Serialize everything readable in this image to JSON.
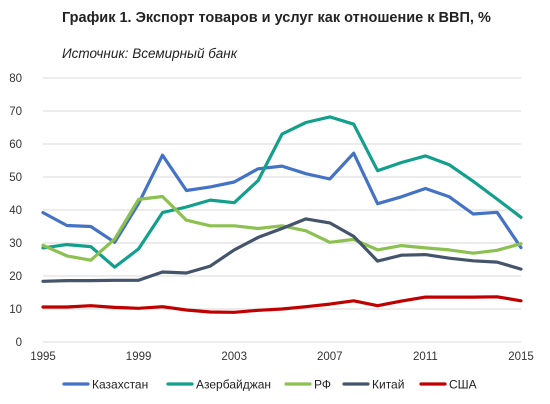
{
  "chart_data": {
    "type": "line",
    "title": "График 1. Экспорт товаров и услуг как отношение к ВВП, %",
    "subtitle": "Источник: Всемирный банк",
    "xlabel": "",
    "ylabel": "",
    "ylim": [
      0,
      80
    ],
    "yticks": [
      0,
      10,
      20,
      30,
      40,
      50,
      60,
      70,
      80
    ],
    "xticks": [
      1995,
      1999,
      2003,
      2007,
      2011,
      2015
    ],
    "grid": true,
    "legend_position": "bottom",
    "x": [
      1995,
      1996,
      1997,
      1998,
      1999,
      2000,
      2001,
      2002,
      2003,
      2004,
      2005,
      2006,
      2007,
      2008,
      2009,
      2010,
      2011,
      2012,
      2013,
      2014,
      2015
    ],
    "series": [
      {
        "name": "Казахстан",
        "color": "#4472C4",
        "values": [
          39.2,
          35.3,
          35.0,
          30.2,
          42.0,
          56.6,
          45.9,
          47.0,
          48.5,
          52.5,
          53.3,
          51.0,
          49.4,
          57.2,
          41.9,
          44.0,
          46.5,
          44.0,
          38.8,
          39.3,
          28.6
        ]
      },
      {
        "name": "Азербайджан",
        "color": "#12A08C",
        "values": [
          28.5,
          29.5,
          28.9,
          22.7,
          28.2,
          39.2,
          40.9,
          43.0,
          42.2,
          48.9,
          63.0,
          66.5,
          68.2,
          66.0,
          51.9,
          54.4,
          56.4,
          53.7,
          48.7,
          43.3,
          37.8
        ]
      },
      {
        "name": "РФ",
        "color": "#8CC152",
        "values": [
          29.3,
          26.1,
          24.8,
          31.2,
          43.2,
          44.1,
          36.9,
          35.2,
          35.2,
          34.4,
          35.2,
          33.7,
          30.2,
          31.1,
          27.9,
          29.2,
          28.5,
          27.9,
          26.9,
          27.8,
          29.8
        ]
      },
      {
        "name": "Китай",
        "color": "#44546A",
        "values": [
          18.4,
          18.6,
          18.6,
          18.7,
          18.7,
          21.2,
          20.9,
          23.0,
          27.9,
          31.7,
          34.4,
          37.3,
          36.1,
          32.0,
          24.5,
          26.3,
          26.5,
          25.4,
          24.6,
          24.2,
          22.1
        ]
      },
      {
        "name": "США",
        "color": "#C00000",
        "values": [
          10.6,
          10.6,
          11.0,
          10.5,
          10.2,
          10.7,
          9.7,
          9.1,
          9.0,
          9.6,
          10.0,
          10.7,
          11.5,
          12.5,
          11.0,
          12.4,
          13.6,
          13.6,
          13.6,
          13.7,
          12.5
        ]
      }
    ]
  }
}
